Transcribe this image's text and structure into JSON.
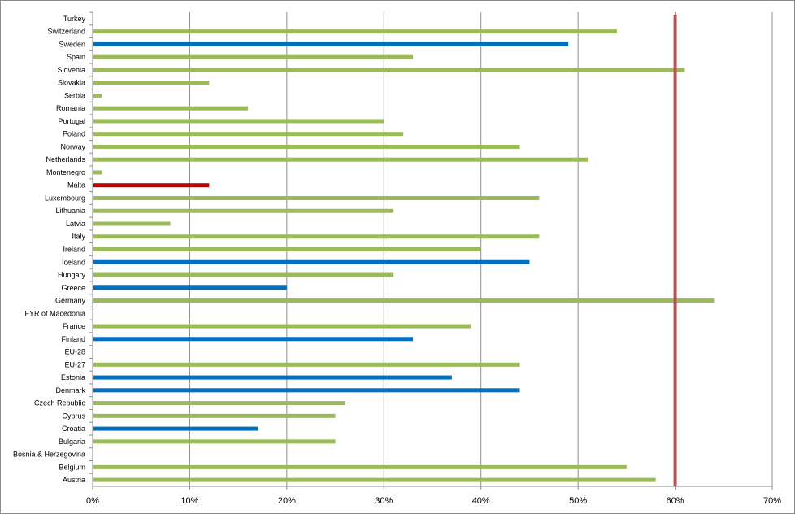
{
  "chart_data": {
    "type": "bar",
    "orientation": "horizontal",
    "title": "",
    "xlabel": "",
    "ylabel": "",
    "xlim": [
      0,
      0.7
    ],
    "x_tick_labels": [
      "0%",
      "10%",
      "20%",
      "30%",
      "40%",
      "50%",
      "60%",
      "70%"
    ],
    "grid": "vertical",
    "legend": "none",
    "reference_line": {
      "value": 0.6,
      "color": "#c0504d"
    },
    "colors": {
      "default": "#9bbb59",
      "highlight": "#0070c0",
      "focus": "#c00000"
    },
    "categories": [
      "Turkey",
      "Switzerland",
      "Sweden",
      "Spain",
      "Slovenia",
      "Slovakia",
      "Serbia",
      "Romania",
      "Portugal",
      "Poland",
      "Norway",
      "Netherlands",
      "Montenegro",
      "Malta",
      "Luxembourg",
      "Lithuania",
      "Latvia",
      "Italy",
      "Ireland",
      "Iceland",
      "Hungary",
      "Greece",
      "Germany",
      "FYR of Macedonia",
      "France",
      "Finland",
      "EU-28",
      "EU-27",
      "Estonia",
      "Denmark",
      "Czech Republic",
      "Cyprus",
      "Croatia",
      "Bulgaria",
      "Bosnia & Herzegovina",
      "Belgium",
      "Austria"
    ],
    "values": [
      0,
      0.54,
      0.49,
      0.33,
      0.61,
      0.12,
      0.01,
      0.16,
      0.3,
      0.32,
      0.44,
      0.51,
      0.01,
      0.12,
      0.46,
      0.31,
      0.08,
      0.46,
      0.4,
      0.45,
      0.31,
      0.2,
      0.64,
      0,
      0.39,
      0.33,
      0,
      0.44,
      0.37,
      0.44,
      0.26,
      0.25,
      0.17,
      0.25,
      0,
      0.55,
      0.58
    ],
    "bar_colors": [
      "green",
      "green",
      "blue",
      "green",
      "green",
      "green",
      "green",
      "green",
      "green",
      "green",
      "green",
      "green",
      "green",
      "red",
      "green",
      "green",
      "green",
      "green",
      "green",
      "blue",
      "green",
      "blue",
      "green",
      "green",
      "green",
      "blue",
      "green",
      "green",
      "blue",
      "blue",
      "green",
      "green",
      "blue",
      "green",
      "green",
      "green",
      "green"
    ]
  }
}
